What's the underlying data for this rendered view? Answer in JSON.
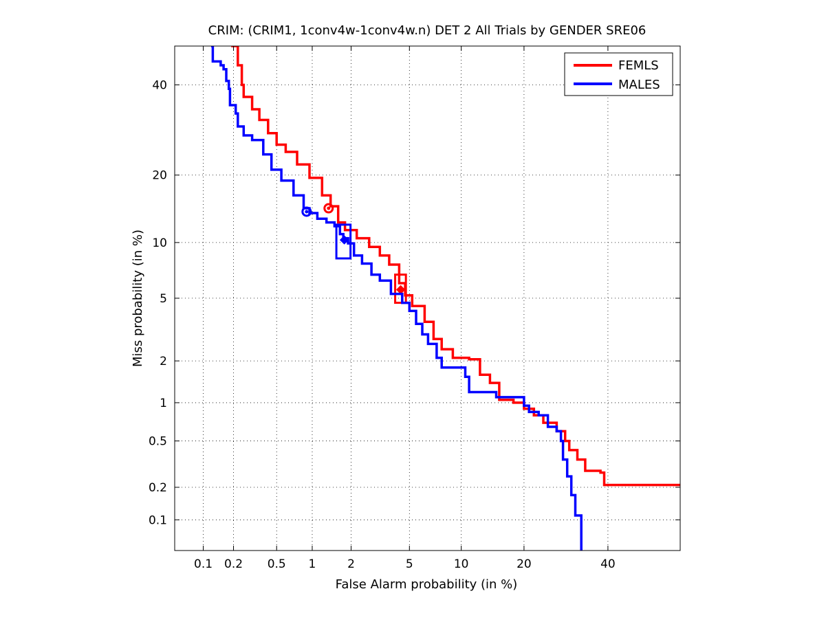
{
  "chart_data": {
    "type": "line",
    "title": "CRIM: (CRIM1, 1conv4w-1conv4w.n) DET 2 All Trials by GENDER SRE06",
    "xlabel": "False Alarm probability (in %)",
    "ylabel": "Miss probability (in %)",
    "x_scale": "probit",
    "y_scale": "probit",
    "xlim": [
      0.05,
      60
    ],
    "ylim": [
      0.05,
      50
    ],
    "grid": true,
    "grid_style": "dotted",
    "legend_position": "top-right",
    "x_ticks": [
      {
        "value": 0.1,
        "label": "0.1"
      },
      {
        "value": 0.2,
        "label": "0.2"
      },
      {
        "value": 0.5,
        "label": "0.5"
      },
      {
        "value": 1,
        "label": "1"
      },
      {
        "value": 2,
        "label": "2"
      },
      {
        "value": 5,
        "label": "5"
      },
      {
        "value": 10,
        "label": "10"
      },
      {
        "value": 20,
        "label": "20"
      },
      {
        "value": 40,
        "label": "40"
      }
    ],
    "y_ticks": [
      {
        "value": 0.1,
        "label": "0.1"
      },
      {
        "value": 0.2,
        "label": "0.2"
      },
      {
        "value": 0.5,
        "label": "0.5"
      },
      {
        "value": 1,
        "label": "1"
      },
      {
        "value": 2,
        "label": "2"
      },
      {
        "value": 5,
        "label": "5"
      },
      {
        "value": 10,
        "label": "10"
      },
      {
        "value": 20,
        "label": "20"
      },
      {
        "value": 40,
        "label": "40"
      }
    ],
    "series": [
      {
        "name": "FEMLS",
        "color": "#ff0000",
        "points": [
          [
            0.19,
            50
          ],
          [
            0.22,
            45
          ],
          [
            0.24,
            40
          ],
          [
            0.25,
            37
          ],
          [
            0.3,
            34
          ],
          [
            0.35,
            31.5
          ],
          [
            0.42,
            28.5
          ],
          [
            0.5,
            26
          ],
          [
            0.6,
            24.5
          ],
          [
            0.75,
            22
          ],
          [
            0.95,
            19.5
          ],
          [
            1.2,
            16.5
          ],
          [
            1.4,
            14.8
          ],
          [
            1.6,
            12.5
          ],
          [
            1.8,
            11.5
          ],
          [
            2.2,
            10.5
          ],
          [
            2.7,
            9.5
          ],
          [
            3.2,
            8.6
          ],
          [
            3.7,
            7.7
          ],
          [
            4.3,
            6.1
          ],
          [
            4.7,
            5.2
          ],
          [
            5.2,
            4.5
          ],
          [
            6.2,
            3.6
          ],
          [
            7.0,
            2.8
          ],
          [
            7.8,
            2.4
          ],
          [
            9.0,
            2.1
          ],
          [
            11.0,
            2.05
          ],
          [
            12.5,
            1.6
          ],
          [
            14.0,
            1.4
          ],
          [
            15.5,
            1.05
          ],
          [
            18.0,
            1.0
          ],
          [
            20.0,
            0.9
          ],
          [
            22.0,
            0.8
          ],
          [
            24.0,
            0.7
          ],
          [
            27.0,
            0.6
          ],
          [
            29.0,
            0.5
          ],
          [
            30.0,
            0.42
          ],
          [
            32.0,
            0.35
          ],
          [
            34.0,
            0.28
          ],
          [
            38.0,
            0.27
          ],
          [
            39.0,
            0.21
          ],
          [
            60.0,
            0.21
          ]
        ],
        "markers": [
          {
            "type": "circle",
            "x": 1.35,
            "y": 14.5
          },
          {
            "type": "box",
            "x": 4.4,
            "y": 5.6,
            "x_range": [
              4.05,
              4.75
            ],
            "y_range": [
              4.7,
              6.8
            ]
          },
          {
            "type": "diamond",
            "x": 4.4,
            "y": 5.6
          }
        ]
      },
      {
        "name": "MALES",
        "color": "#0000ff",
        "points": [
          [
            0.12,
            50
          ],
          [
            0.125,
            46
          ],
          [
            0.15,
            45
          ],
          [
            0.16,
            44
          ],
          [
            0.17,
            41
          ],
          [
            0.18,
            39
          ],
          [
            0.185,
            35
          ],
          [
            0.21,
            33
          ],
          [
            0.22,
            30
          ],
          [
            0.25,
            28
          ],
          [
            0.3,
            27
          ],
          [
            0.38,
            24
          ],
          [
            0.45,
            21
          ],
          [
            0.55,
            19
          ],
          [
            0.7,
            16.5
          ],
          [
            0.85,
            14.5
          ],
          [
            0.95,
            13.8
          ],
          [
            1.1,
            13
          ],
          [
            1.3,
            12.5
          ],
          [
            1.5,
            12
          ],
          [
            1.65,
            11
          ],
          [
            1.75,
            10.5
          ],
          [
            1.9,
            9.9
          ],
          [
            2.1,
            8.6
          ],
          [
            2.4,
            7.8
          ],
          [
            2.8,
            6.8
          ],
          [
            3.2,
            6.3
          ],
          [
            3.8,
            5.3
          ],
          [
            4.5,
            4.7
          ],
          [
            5.0,
            4.2
          ],
          [
            5.5,
            3.5
          ],
          [
            6.0,
            3.0
          ],
          [
            6.5,
            2.6
          ],
          [
            7.3,
            2.1
          ],
          [
            7.8,
            1.8
          ],
          [
            9.0,
            1.8
          ],
          [
            10.5,
            1.55
          ],
          [
            11.0,
            1.2
          ],
          [
            12.5,
            1.2
          ],
          [
            15.0,
            1.1
          ],
          [
            19.0,
            1.1
          ],
          [
            20.0,
            0.95
          ],
          [
            21.0,
            0.85
          ],
          [
            23.0,
            0.8
          ],
          [
            25.0,
            0.65
          ],
          [
            27.0,
            0.6
          ],
          [
            28.0,
            0.5
          ],
          [
            28.5,
            0.35
          ],
          [
            29.5,
            0.25
          ],
          [
            30.5,
            0.17
          ],
          [
            31.5,
            0.11
          ],
          [
            33.0,
            0.05
          ]
        ],
        "markers": [
          {
            "type": "circle",
            "x": 0.9,
            "y": 14.0
          },
          {
            "type": "box",
            "x": 1.75,
            "y": 10.3,
            "x_range": [
              1.55,
              1.98
            ],
            "y_range": [
              8.3,
              12.2
            ]
          },
          {
            "type": "diamond",
            "x": 1.78,
            "y": 10.3
          }
        ]
      }
    ]
  }
}
